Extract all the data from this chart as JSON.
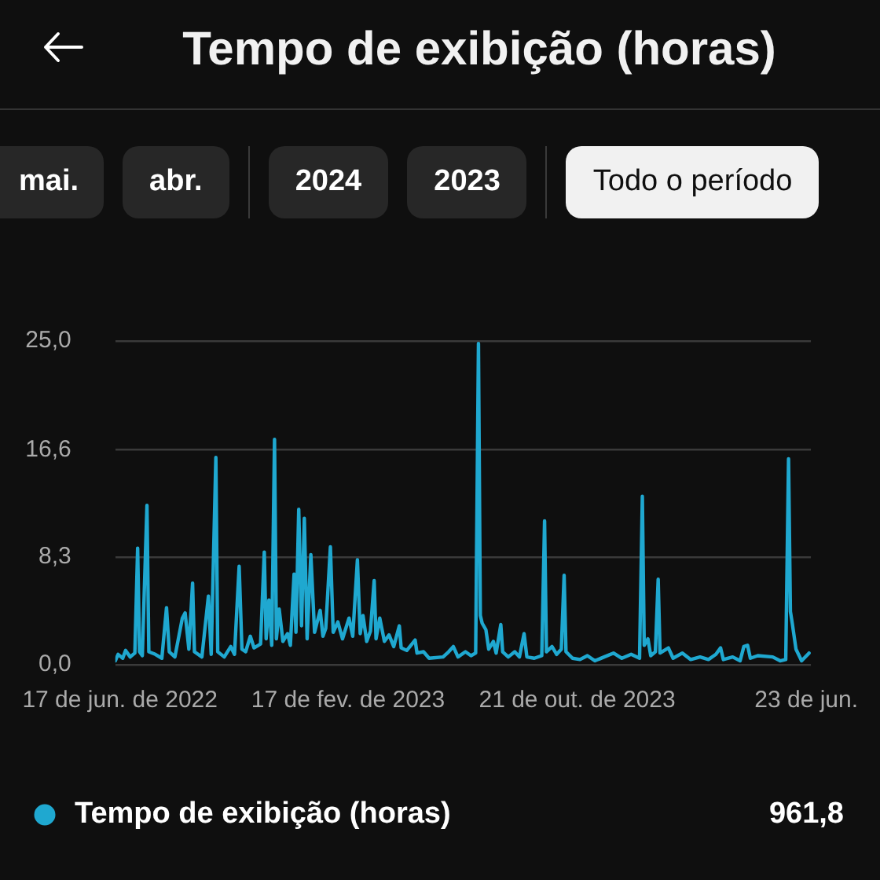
{
  "chart_data": {
    "type": "line",
    "title": "Tempo de exibição (horas)",
    "annotations": [
      "mai.",
      "abr.",
      "2024",
      "2023",
      "Todo o período",
      "961,8"
    ],
    "x": [
      "2022-06-12",
      "2022-06-15",
      "2022-06-20",
      "2022-06-23",
      "2022-06-28",
      "2022-07-03",
      "2022-07-06",
      "2022-07-08",
      "2022-07-11",
      "2022-07-16",
      "2022-07-18",
      "2022-07-25",
      "2022-08-01",
      "2022-08-06",
      "2022-08-09",
      "2022-08-15",
      "2022-08-23",
      "2022-08-26",
      "2022-08-30",
      "2022-09-03",
      "2022-09-05",
      "2022-09-13",
      "2022-09-20",
      "2022-09-23",
      "2022-09-28",
      "2022-09-30",
      "2022-10-07",
      "2022-10-14",
      "2022-10-18",
      "2022-10-23",
      "2022-10-26",
      "2022-10-30",
      "2022-11-04",
      "2022-11-08",
      "2022-11-15",
      "2022-11-19",
      "2022-11-21",
      "2022-11-24",
      "2022-11-27",
      "2022-11-30",
      "2022-12-02",
      "2022-12-05",
      "2022-12-09",
      "2022-12-14",
      "2022-12-17",
      "2022-12-21",
      "2022-12-23",
      "2022-12-26",
      "2022-12-29",
      "2023-01-01",
      "2023-01-04",
      "2023-01-08",
      "2023-01-12",
      "2023-01-18",
      "2023-01-21",
      "2023-01-24",
      "2023-01-29",
      "2023-02-01",
      "2023-02-06",
      "2023-02-11",
      "2023-02-18",
      "2023-02-22",
      "2023-02-27",
      "2023-03-02",
      "2023-03-05",
      "2023-03-09",
      "2023-03-13",
      "2023-03-17",
      "2023-03-19",
      "2023-03-23",
      "2023-03-28",
      "2023-04-02",
      "2023-04-07",
      "2023-04-13",
      "2023-04-15",
      "2023-04-21",
      "2023-04-30",
      "2023-05-02",
      "2023-05-09",
      "2023-05-15",
      "2023-05-30",
      "2023-06-05",
      "2023-06-10",
      "2023-06-15",
      "2023-06-23",
      "2023-06-29",
      "2023-07-04",
      "2023-07-07",
      "2023-07-09",
      "2023-07-11",
      "2023-07-15",
      "2023-07-18",
      "2023-07-23",
      "2023-07-26",
      "2023-07-31",
      "2023-08-02",
      "2023-08-08",
      "2023-08-15",
      "2023-08-20",
      "2023-08-25",
      "2023-08-28",
      "2023-09-05",
      "2023-09-13",
      "2023-09-16",
      "2023-09-18",
      "2023-09-24",
      "2023-09-29",
      "2023-10-04",
      "2023-10-07",
      "2023-10-09",
      "2023-10-16",
      "2023-10-24",
      "2023-11-01",
      "2023-11-09",
      "2023-11-19",
      "2023-11-29",
      "2023-12-08",
      "2023-12-18",
      "2023-12-27",
      "2023-12-30",
      "2024-01-01",
      "2024-01-05",
      "2024-01-08",
      "2024-01-13",
      "2024-01-16",
      "2024-01-18",
      "2024-01-27",
      "2024-02-01",
      "2024-02-11",
      "2024-02-20",
      "2024-03-01",
      "2024-03-10",
      "2024-03-18",
      "2024-03-23",
      "2024-03-26",
      "2024-04-05",
      "2024-04-13",
      "2024-04-17",
      "2024-04-21",
      "2024-04-24",
      "2024-05-02",
      "2024-05-18",
      "2024-05-26",
      "2024-06-01",
      "2024-06-04",
      "2024-06-06",
      "2024-06-08",
      "2024-06-12",
      "2024-06-18",
      "2024-06-26"
    ],
    "series": [
      {
        "name": "Tempo de exibição (horas)",
        "color": "#1fa8d0",
        "values": [
          0.3,
          0.8,
          0.5,
          1.1,
          0.6,
          0.9,
          9.0,
          1.0,
          0.7,
          12.3,
          1.0,
          0.8,
          0.5,
          4.4,
          1.0,
          0.6,
          3.6,
          4.0,
          1.2,
          6.3,
          1.0,
          0.6,
          5.3,
          0.8,
          16.0,
          1.0,
          0.6,
          1.4,
          0.8,
          7.6,
          1.2,
          1.0,
          2.2,
          1.3,
          1.6,
          8.7,
          2.0,
          5.0,
          1.5,
          17.4,
          2.0,
          4.3,
          1.8,
          2.4,
          1.5,
          7.0,
          2.5,
          12.0,
          3.0,
          11.3,
          2.0,
          8.5,
          2.5,
          4.2,
          2.2,
          2.8,
          9.1,
          2.5,
          3.3,
          2.0,
          3.6,
          2.2,
          8.1,
          2.4,
          3.8,
          1.8,
          2.6,
          6.5,
          2.0,
          3.6,
          1.8,
          2.3,
          1.4,
          3.0,
          1.3,
          1.1,
          1.9,
          0.9,
          1.0,
          0.5,
          0.6,
          1.0,
          1.4,
          0.6,
          1.0,
          0.7,
          0.9,
          24.8,
          3.8,
          3.2,
          2.7,
          1.2,
          1.8,
          0.9,
          3.1,
          1.0,
          0.6,
          1.0,
          0.6,
          2.4,
          0.6,
          0.5,
          0.7,
          11.1,
          1.0,
          1.4,
          0.8,
          1.2,
          6.9,
          1.0,
          0.5,
          0.4,
          0.7,
          0.3,
          0.6,
          0.9,
          0.5,
          0.8,
          0.5,
          13.0,
          1.5,
          2.0,
          0.7,
          1.0,
          6.6,
          0.9,
          1.3,
          0.5,
          0.9,
          0.4,
          0.6,
          0.4,
          0.8,
          1.3,
          0.4,
          0.6,
          0.3,
          1.4,
          1.5,
          0.5,
          0.7,
          0.6,
          0.3,
          0.4,
          15.9,
          4.1,
          3.2,
          1.2,
          0.3,
          0.9
        ]
      }
    ],
    "xlim": [
      "2022-06-12",
      "2024-06-28"
    ],
    "xticks": [
      {
        "value": "2022-06-17",
        "label": "17 de jun. de 2022"
      },
      {
        "value": "2023-02-17",
        "label": "17 de fev. de 2023"
      },
      {
        "value": "2023-10-21",
        "label": "21 de out. de 2023"
      },
      {
        "value": "2024-06-23",
        "label": "23 de jun."
      }
    ],
    "ylim": [
      0,
      25
    ],
    "yticks": [
      {
        "value": 0,
        "label": "0,0"
      },
      {
        "value": 8.3,
        "label": "8,3"
      },
      {
        "value": 16.6,
        "label": "16,6"
      },
      {
        "value": 25,
        "label": "25,0"
      }
    ],
    "grid": "y",
    "legend": "bottom left",
    "marker": "none"
  }
}
